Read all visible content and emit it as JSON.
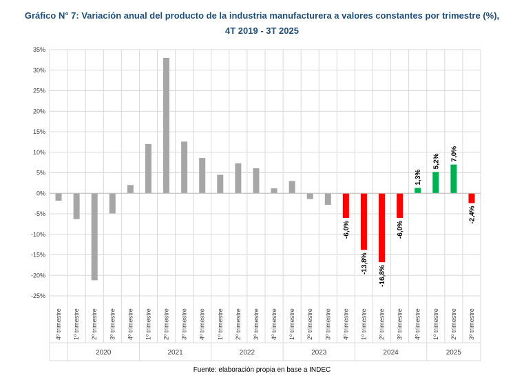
{
  "chart_data": {
    "type": "bar",
    "title": "Gráfico N° 7: Variación anual del producto de la industria manufacturera a valores constantes por trimestre (%),",
    "subtitle": "4T 2019 - 3T 2025",
    "source": "Fuente: elaboración propia en base a INDEC",
    "ylim": [
      -25,
      35
    ],
    "ytick_step": 5,
    "ytick_labels": [
      "35%",
      "30%",
      "25%",
      "20%",
      "15%",
      "10%",
      "5%",
      "0%",
      "-5%",
      "-10%",
      "-15%",
      "-20%",
      "-25%"
    ],
    "grid": true,
    "categories": [
      "4º trimestre",
      "1º trimestre",
      "2º trimestre",
      "3º trimestre",
      "4º trimestre",
      "1º trimestre",
      "2º trimestre",
      "3º trimestre",
      "4º trimestre",
      "1º trimestre",
      "2º trimestre",
      "3º trimestre",
      "4º trimestre",
      "1º trimestre",
      "2º trimestre",
      "3º trimestre",
      "4º trimestre",
      "1º trimestre",
      "2º trimestre",
      "3º trimestre",
      "4º trimestre",
      "1º trimestre",
      "2º trimestre",
      "3º trimestre"
    ],
    "year_groups": [
      {
        "label": "",
        "count": 1
      },
      {
        "label": "2020",
        "count": 4
      },
      {
        "label": "2021",
        "count": 4
      },
      {
        "label": "2022",
        "count": 4
      },
      {
        "label": "2023",
        "count": 4
      },
      {
        "label": "2024",
        "count": 4
      },
      {
        "label": "2025",
        "count": 3
      }
    ],
    "values": [
      -1.8,
      -6.3,
      -21.2,
      -4.9,
      2.0,
      12.0,
      33.0,
      12.6,
      8.6,
      4.5,
      7.3,
      6.1,
      1.2,
      3.0,
      -1.4,
      -2.8,
      -6.0,
      -13.8,
      -16.8,
      -6.0,
      1.3,
      5.2,
      7.0,
      -2.4
    ],
    "bar_colors": [
      "#a6a6a6",
      "#a6a6a6",
      "#a6a6a6",
      "#a6a6a6",
      "#a6a6a6",
      "#a6a6a6",
      "#a6a6a6",
      "#a6a6a6",
      "#a6a6a6",
      "#a6a6a6",
      "#a6a6a6",
      "#a6a6a6",
      "#a6a6a6",
      "#a6a6a6",
      "#a6a6a6",
      "#a6a6a6",
      "#ff0000",
      "#ff0000",
      "#ff0000",
      "#ff0000",
      "#00b050",
      "#00b050",
      "#00b050",
      "#ff0000"
    ],
    "data_labels": [
      "",
      "",
      "",
      "",
      "",
      "",
      "",
      "",
      "",
      "",
      "",
      "",
      "",
      "",
      "",
      "",
      "-6,0%",
      "-13,8%",
      "-16,8%",
      "-6,0%",
      "1,3%",
      "5,2%",
      "7,0%",
      "-2,4%"
    ]
  }
}
